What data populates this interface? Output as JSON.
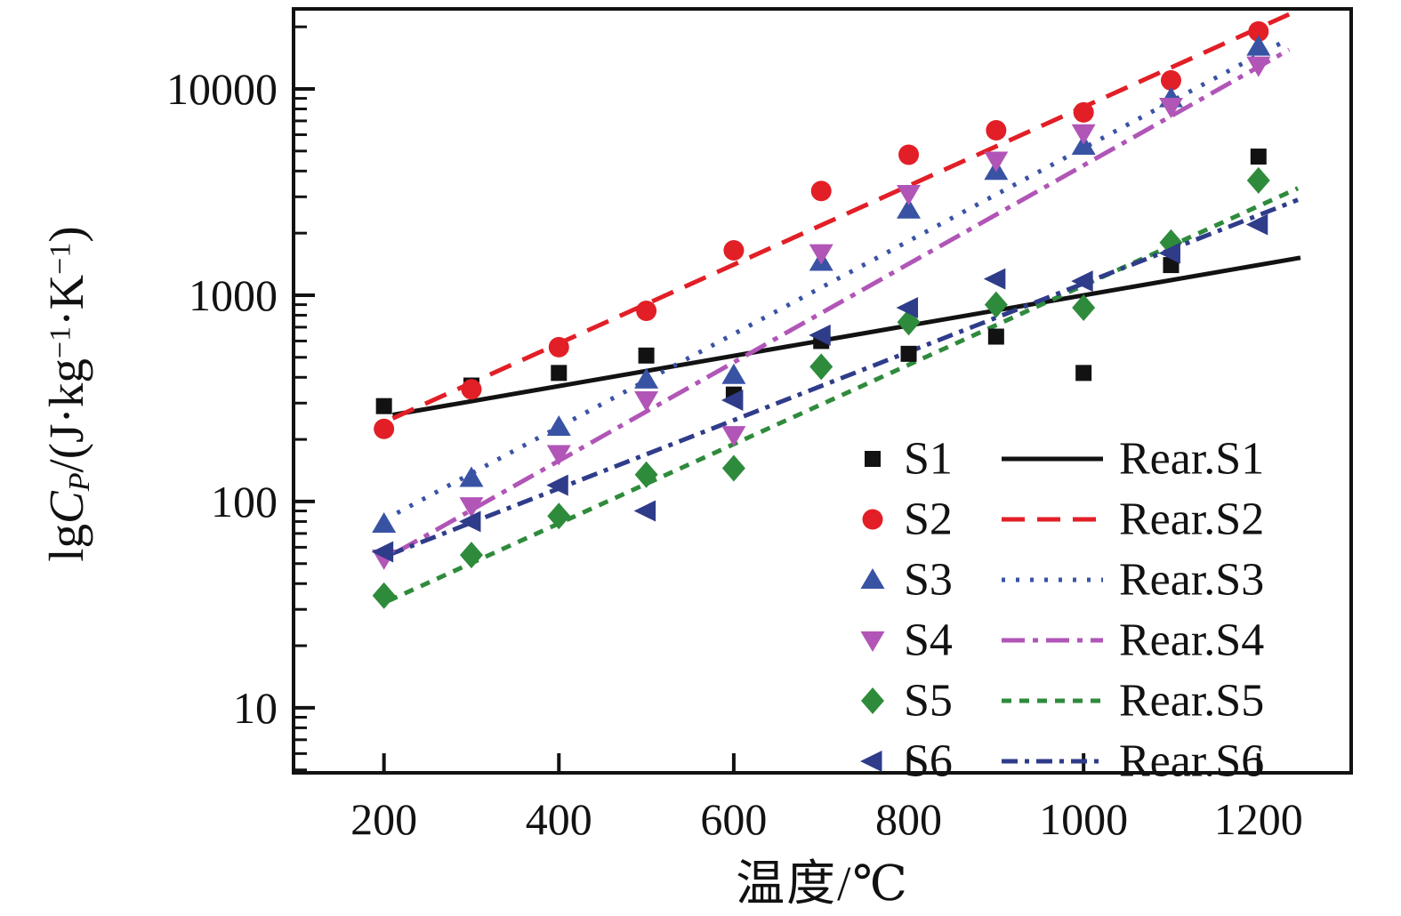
{
  "figure": {
    "background": "#ffffff",
    "axis_color": "#121212"
  },
  "chart_data": {
    "type": "scatter",
    "title": "",
    "xlabel": "温度/℃",
    "ylabel": "lgCP/(J·kg⁻¹·K⁻¹)",
    "ylabel_parts": {
      "prefix": "lg",
      "var": "C",
      "var_sub": "P",
      "unit_a": "/(J·kg",
      "sup_a": "−1",
      "unit_b": "·K",
      "sup_b": "−1",
      "unit_c": ")"
    },
    "x_axis": {
      "ticks": [
        200,
        400,
        600,
        800,
        1000,
        1200
      ],
      "tick_labels": [
        "200",
        "400",
        "600",
        "800",
        "1000",
        "1200"
      ],
      "lim": [
        96.6,
        1306
      ]
    },
    "y_axis": {
      "scale": "log",
      "ticks": [
        10,
        100,
        1000,
        10000
      ],
      "tick_labels": [
        "10",
        "100",
        "1000",
        "10000"
      ],
      "minor_multiples": [
        2,
        3,
        4,
        5,
        6,
        7,
        8,
        9
      ],
      "lim": [
        4.84,
        24434
      ]
    },
    "grid": false,
    "series": [
      {
        "name": "S1",
        "marker": "square",
        "color": "#121212",
        "points": [
          [
            200,
            290
          ],
          [
            300,
            365
          ],
          [
            400,
            420
          ],
          [
            500,
            510
          ],
          [
            600,
            330
          ],
          [
            700,
            600
          ],
          [
            800,
            520
          ],
          [
            900,
            630
          ],
          [
            1000,
            420
          ],
          [
            1100,
            1400
          ],
          [
            1200,
            4700
          ]
        ]
      },
      {
        "name": "S2",
        "marker": "circle",
        "color": "#e21f26",
        "points": [
          [
            200,
            225
          ],
          [
            300,
            350
          ],
          [
            400,
            560
          ],
          [
            500,
            840
          ],
          [
            600,
            1650
          ],
          [
            700,
            3200
          ],
          [
            800,
            4800
          ],
          [
            900,
            6300
          ],
          [
            1000,
            7700
          ],
          [
            1100,
            11000
          ],
          [
            1200,
            19000
          ]
        ]
      },
      {
        "name": "S3",
        "marker": "triangle-up",
        "color": "#3953a4",
        "points": [
          [
            200,
            78
          ],
          [
            300,
            130
          ],
          [
            400,
            230
          ],
          [
            500,
            390
          ],
          [
            600,
            410
          ],
          [
            700,
            1450
          ],
          [
            800,
            2600
          ],
          [
            900,
            4000
          ],
          [
            1000,
            5300
          ],
          [
            1100,
            9000
          ],
          [
            1200,
            16000
          ]
        ]
      },
      {
        "name": "S4",
        "marker": "triangle-down",
        "color": "#b155b7",
        "points": [
          [
            200,
            53
          ],
          [
            300,
            95
          ],
          [
            400,
            170
          ],
          [
            500,
            310
          ],
          [
            600,
            210
          ],
          [
            700,
            1600
          ],
          [
            800,
            3100
          ],
          [
            900,
            4500
          ],
          [
            1000,
            6100
          ],
          [
            1100,
            8200
          ],
          [
            1200,
            13000
          ]
        ]
      },
      {
        "name": "S5",
        "marker": "diamond",
        "color": "#2f8b3c",
        "points": [
          [
            200,
            35
          ],
          [
            300,
            55
          ],
          [
            400,
            85
          ],
          [
            500,
            135
          ],
          [
            600,
            145
          ],
          [
            700,
            450
          ],
          [
            800,
            740
          ],
          [
            900,
            900
          ],
          [
            1000,
            870
          ],
          [
            1100,
            1800
          ],
          [
            1200,
            3600
          ]
        ]
      },
      {
        "name": "S6",
        "marker": "triangle-left",
        "color": "#2f3c8a",
        "points": [
          [
            200,
            57
          ],
          [
            300,
            80
          ],
          [
            400,
            120
          ],
          [
            500,
            90
          ],
          [
            600,
            310
          ],
          [
            700,
            640
          ],
          [
            800,
            870
          ],
          [
            900,
            1200
          ],
          [
            1000,
            1170
          ],
          [
            1100,
            1600
          ],
          [
            1200,
            2200
          ]
        ]
      }
    ],
    "fit_lines": [
      {
        "name": "Rear.S1",
        "line_style": "solid",
        "color": "#121212",
        "from": [
          210,
          263
        ],
        "to": [
          1248,
          1520
        ]
      },
      {
        "name": "Rear.S2",
        "line_style": "dashed",
        "color": "#e21f26",
        "from": [
          210,
          253
        ],
        "to": [
          1235,
          23000
        ]
      },
      {
        "name": "Rear.S3",
        "line_style": "dotted",
        "color": "#3953a4",
        "from": [
          215,
          88
        ],
        "to": [
          1235,
          17500
        ]
      },
      {
        "name": "Rear.S4",
        "line_style": "dash-dot",
        "color": "#b155b7",
        "from": [
          215,
          57
        ],
        "to": [
          1235,
          15500
        ]
      },
      {
        "name": "Rear.S5",
        "line_style": "short-dash",
        "color": "#2f8b3c",
        "from": [
          205,
          33
        ],
        "to": [
          1245,
          3300
        ]
      },
      {
        "name": "Rear.S6",
        "line_style": "dash-dot-dot",
        "color": "#2f3c8a",
        "from": [
          205,
          55
        ],
        "to": [
          1245,
          2900
        ]
      }
    ],
    "legend": {
      "position": "inside-bottom-right",
      "marker_labels": [
        "S1",
        "S2",
        "S3",
        "S4",
        "S5",
        "S6"
      ],
      "line_labels": [
        "Rear.S1",
        "Rear.S2",
        "Rear.S3",
        "Rear.S4",
        "Rear.S5",
        "Rear.S6"
      ]
    }
  }
}
